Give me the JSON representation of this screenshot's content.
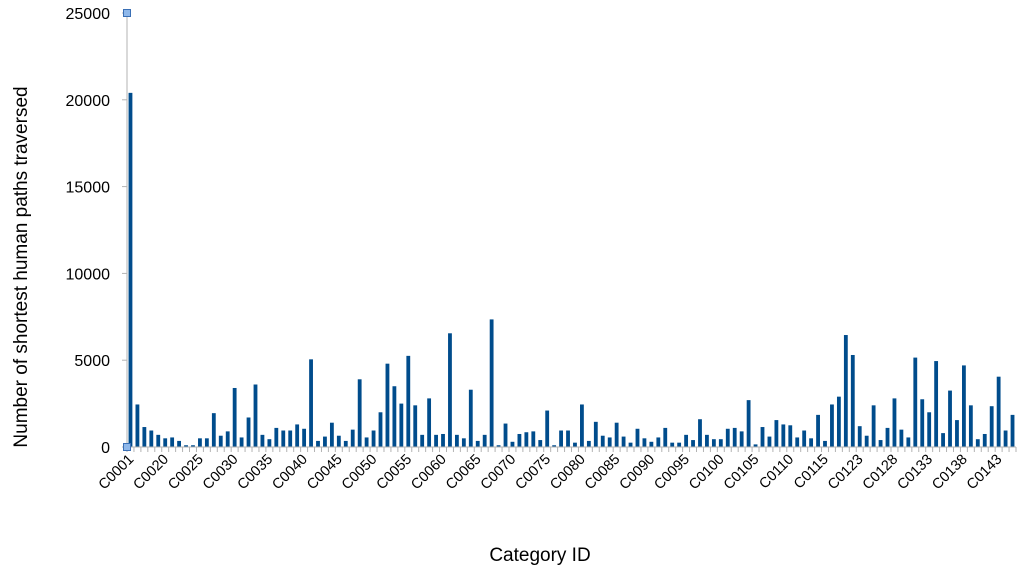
{
  "chart_data": {
    "type": "bar",
    "xlabel": "Category ID",
    "ylabel": "Number of shortest human paths traversed",
    "ylim": [
      0,
      25000
    ],
    "yticks": [
      0,
      5000,
      10000,
      15000,
      20000,
      25000
    ],
    "ytick_labels": [
      "0",
      "5000",
      "10000",
      "15000",
      "20000",
      "25000"
    ],
    "grid": false,
    "legend": "none",
    "bar_color": "#004c8c",
    "axis_color": "#b3b3b3",
    "category_labels_shown": [
      "C0001",
      "C0020",
      "C0025",
      "C0030",
      "C0035",
      "C0040",
      "C0045",
      "C0050",
      "C0055",
      "C0060",
      "C0065",
      "C0070",
      "C0075",
      "C0080",
      "C0085",
      "C0090",
      "C0095",
      "C0100",
      "C0105",
      "C0110",
      "C0115",
      "C0123",
      "C0128",
      "C0133",
      "C0138",
      "C0143"
    ],
    "values": [
      20400,
      2450,
      1150,
      950,
      700,
      500,
      550,
      350,
      100,
      100,
      500,
      500,
      1950,
      650,
      900,
      3400,
      550,
      1700,
      3600,
      700,
      450,
      1100,
      950,
      950,
      1300,
      1050,
      5050,
      350,
      600,
      1400,
      650,
      350,
      1000,
      3900,
      550,
      950,
      2000,
      4800,
      3500,
      2500,
      5250,
      2400,
      700,
      2800,
      700,
      750,
      6550,
      700,
      500,
      3300,
      350,
      700,
      7350,
      100,
      1350,
      300,
      750,
      850,
      900,
      400,
      2100,
      100,
      950,
      950,
      250,
      2450,
      350,
      1450,
      650,
      550,
      1400,
      600,
      250,
      1050,
      500,
      300,
      550,
      1100,
      250,
      250,
      700,
      400,
      1600,
      700,
      450,
      450,
      1050,
      1100,
      900,
      2700,
      150,
      1150,
      600,
      1550,
      1300,
      1250,
      550,
      950,
      500,
      1850,
      350,
      2450,
      2900,
      6450,
      5300,
      1200,
      650,
      2400,
      400,
      1100,
      2800,
      1000,
      550,
      5150,
      2750,
      2000,
      4950,
      800,
      3250,
      1550,
      4700,
      2400,
      450,
      750,
      2350,
      4050,
      950,
      1850
    ]
  }
}
